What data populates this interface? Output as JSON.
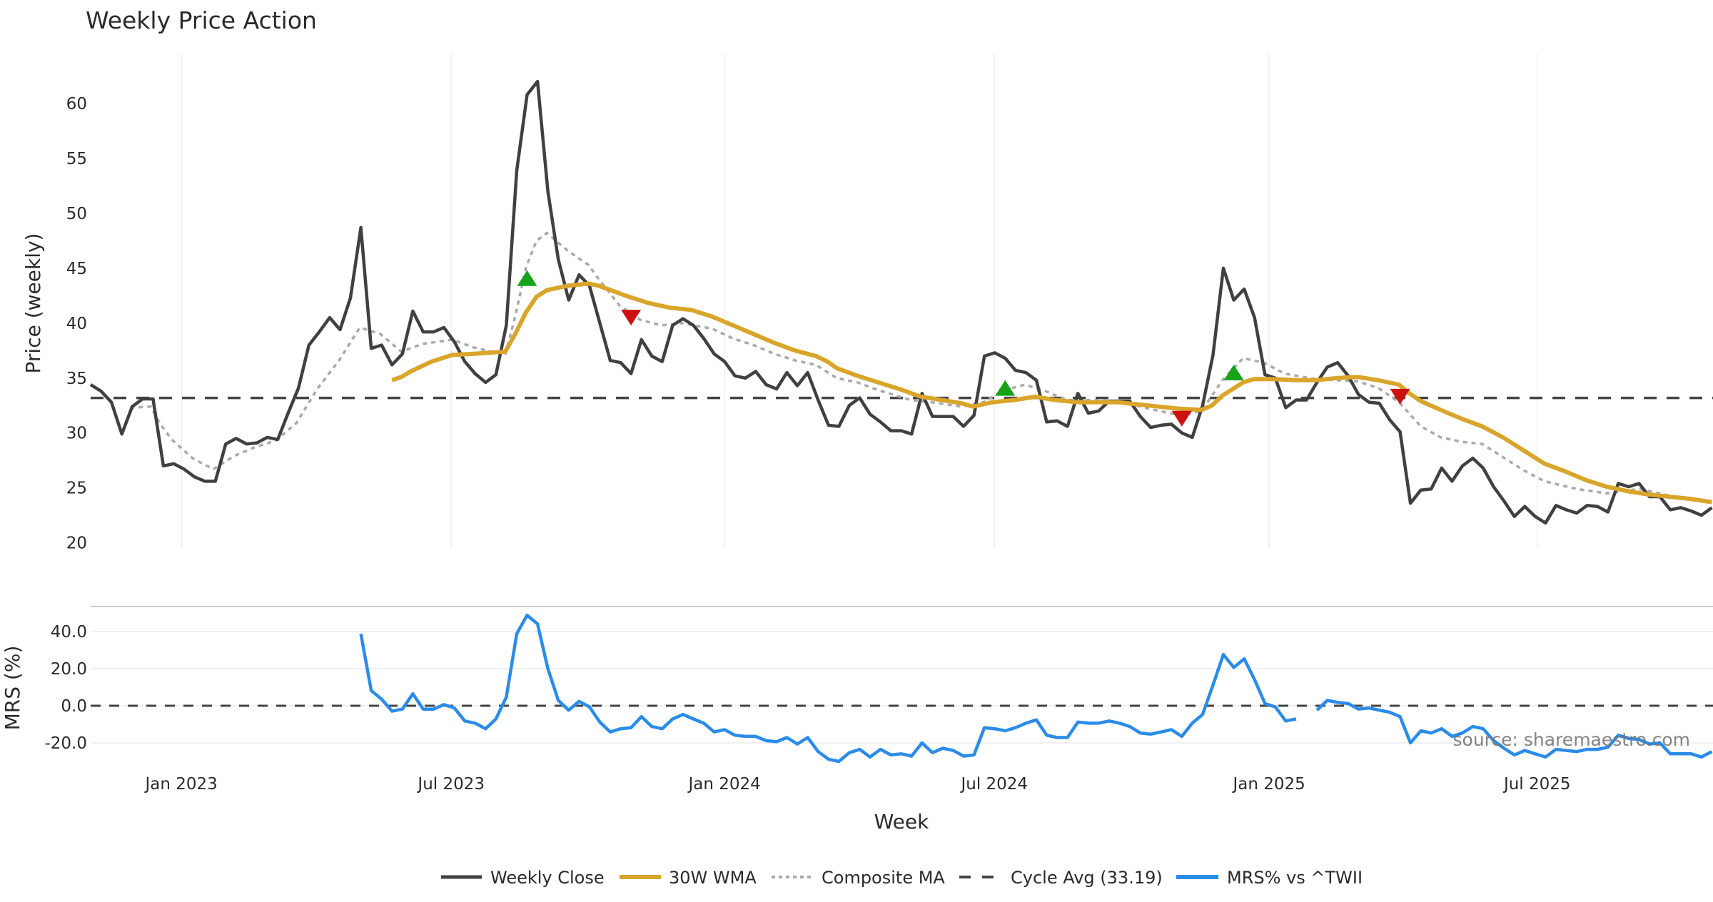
{
  "chart_data": {
    "type": "line",
    "title": "Weekly Price Action",
    "xlabel": "Week",
    "x_unit": "week index (weekly samples)",
    "x_ticks": [
      {
        "label": "Jan 2023",
        "at": 8.73
      },
      {
        "label": "Jul 2023",
        "at": 34.7
      },
      {
        "label": "Jan 2024",
        "at": 61.0
      },
      {
        "label": "Jul 2024",
        "at": 86.97
      },
      {
        "label": "Jan 2025",
        "at": 113.4
      },
      {
        "label": "Jul 2025",
        "at": 139.2
      }
    ],
    "xlim": [
      0,
      156
    ],
    "price_panel": {
      "ylabel": "Price (weekly)",
      "ylim": [
        20,
        60
      ],
      "yticks": [
        "20",
        "25",
        "30",
        "35",
        "40",
        "45",
        "50",
        "55",
        "60"
      ],
      "grid": "vertical",
      "series": {
        "weekly_close": {
          "name": "Weekly Close",
          "color": "#404040",
          "start": 0,
          "values": [
            34.4,
            33.8,
            32.8,
            29.9,
            32.4,
            33.1,
            33.1,
            27.0,
            27.2,
            26.7,
            26.0,
            25.6,
            25.6,
            29.0,
            29.5,
            29.0,
            29.1,
            29.6,
            29.4,
            31.8,
            34.1,
            38.0,
            39.2,
            40.5,
            39.4,
            42.3,
            48.7,
            37.7,
            38.0,
            36.2,
            37.2,
            41.1,
            39.2,
            39.2,
            39.6,
            38.3,
            36.5,
            35.4,
            34.6,
            35.3,
            39.8,
            53.9,
            60.8,
            62.0,
            52.0,
            45.8,
            42.1,
            44.4,
            43.4,
            40.0,
            36.6,
            36.4,
            35.4,
            38.5,
            37.0,
            36.5,
            39.8,
            40.4,
            39.8,
            38.6,
            37.2,
            36.5,
            35.2,
            35.0,
            35.6,
            34.4,
            34.0,
            35.5,
            34.3,
            35.5,
            33.0,
            30.7,
            30.6,
            32.5,
            33.2,
            31.7,
            31.0,
            30.2,
            30.2,
            29.9,
            33.6,
            31.5,
            31.5,
            31.5,
            30.6,
            31.6,
            37.0,
            37.3,
            36.8,
            35.7,
            35.5,
            34.8,
            31.0,
            31.1,
            30.6,
            33.6,
            31.8,
            32.0,
            32.9,
            32.9,
            32.9,
            31.5,
            30.5,
            30.7,
            30.8,
            30.0,
            29.6,
            32.5,
            37.1,
            45.0,
            42.1,
            43.1,
            40.5,
            35.3,
            35.0,
            32.3,
            33.0,
            33.0,
            34.6,
            36.0,
            36.4,
            35.2,
            33.5,
            32.8,
            32.7,
            31.2,
            30.1,
            23.6,
            24.8,
            24.9,
            26.8,
            25.6,
            27.0,
            27.7,
            26.8,
            25.1,
            23.8,
            22.4,
            23.3,
            22.4,
            21.8,
            23.4,
            23.0,
            22.7,
            23.4,
            23.3,
            22.8,
            25.4,
            25.1,
            25.4,
            24.2,
            24.2,
            23.0,
            23.2,
            22.9,
            22.5,
            23.2
          ]
        },
        "wma_30w": {
          "name": "30W WMA",
          "color": "#D9A52A",
          "points": [
            [
              29,
              34.8
            ],
            [
              29.9,
              35.1
            ],
            [
              30.8,
              35.6
            ],
            [
              32.8,
              36.5
            ],
            [
              34.8,
              37.1
            ],
            [
              36.8,
              37.2
            ],
            [
              39.9,
              37.4
            ],
            [
              40.9,
              39.1
            ],
            [
              41.9,
              41.0
            ],
            [
              42.9,
              42.4
            ],
            [
              43.9,
              43.0
            ],
            [
              45.9,
              43.4
            ],
            [
              47.9,
              43.6
            ],
            [
              48.9,
              43.4
            ],
            [
              51.8,
              42.4
            ],
            [
              53.8,
              41.8
            ],
            [
              55.8,
              41.4
            ],
            [
              57.8,
              41.2
            ],
            [
              59.8,
              40.6
            ],
            [
              61.8,
              39.8
            ],
            [
              63.8,
              39.0
            ],
            [
              65.8,
              38.2
            ],
            [
              67.8,
              37.5
            ],
            [
              69.8,
              37.0
            ],
            [
              70.9,
              36.5
            ],
            [
              71.8,
              35.9
            ],
            [
              73.8,
              35.2
            ],
            [
              75.8,
              34.6
            ],
            [
              77.8,
              34.0
            ],
            [
              79.9,
              33.3
            ],
            [
              81.9,
              33.0
            ],
            [
              83.8,
              32.7
            ],
            [
              84.9,
              32.4
            ],
            [
              86.8,
              32.8
            ],
            [
              88.9,
              33.0
            ],
            [
              90.9,
              33.3
            ],
            [
              92.8,
              33.0
            ],
            [
              94.9,
              32.8
            ],
            [
              96.8,
              32.8
            ],
            [
              98.8,
              32.8
            ],
            [
              100.8,
              32.6
            ],
            [
              102.8,
              32.4
            ],
            [
              104.8,
              32.2
            ],
            [
              106.9,
              32.1
            ],
            [
              107.9,
              32.5
            ],
            [
              108.9,
              33.4
            ],
            [
              110.9,
              34.6
            ],
            [
              111.9,
              34.9
            ],
            [
              113.9,
              34.9
            ],
            [
              115.9,
              34.8
            ],
            [
              117.9,
              34.8
            ],
            [
              119.9,
              35.0
            ],
            [
              121.9,
              35.1
            ],
            [
              123.9,
              34.8
            ],
            [
              125.9,
              34.4
            ],
            [
              126.9,
              33.6
            ],
            [
              128.0,
              32.9
            ],
            [
              129.9,
              32.1
            ],
            [
              131.9,
              31.3
            ],
            [
              133.9,
              30.6
            ],
            [
              135.9,
              29.6
            ],
            [
              137.9,
              28.4
            ],
            [
              139.9,
              27.2
            ],
            [
              141.9,
              26.5
            ],
            [
              143.9,
              25.7
            ],
            [
              145.9,
              25.1
            ],
            [
              147.9,
              24.7
            ],
            [
              149.9,
              24.4
            ],
            [
              151.9,
              24.2
            ],
            [
              153.9,
              24.0
            ],
            [
              156,
              23.7
            ]
          ]
        },
        "composite_ma": {
          "name": "Composite MA",
          "color": "#AAAAAA",
          "points": [
            [
              3.8,
              32.3
            ],
            [
              5.8,
              32.4
            ],
            [
              6.7,
              30.8
            ],
            [
              7.8,
              29.4
            ],
            [
              9.8,
              27.7
            ],
            [
              11.8,
              26.7
            ],
            [
              13.8,
              27.9
            ],
            [
              15.8,
              28.7
            ],
            [
              17.8,
              29.3
            ],
            [
              19.8,
              30.9
            ],
            [
              21.8,
              34.0
            ],
            [
              23.9,
              36.6
            ],
            [
              25.9,
              39.6
            ],
            [
              27.9,
              39.0
            ],
            [
              29.9,
              37.4
            ],
            [
              31.9,
              38.1
            ],
            [
              34.8,
              38.5
            ],
            [
              36.8,
              37.8
            ],
            [
              39.9,
              37.1
            ],
            [
              40.9,
              40.8
            ],
            [
              41.9,
              45.1
            ],
            [
              42.9,
              47.5
            ],
            [
              43.9,
              48.2
            ],
            [
              45.9,
              46.6
            ],
            [
              47.9,
              45.3
            ],
            [
              48.9,
              44.0
            ],
            [
              50.9,
              41.6
            ],
            [
              52.9,
              40.3
            ],
            [
              54.9,
              39.8
            ],
            [
              56.9,
              40.0
            ],
            [
              59.8,
              39.5
            ],
            [
              61.8,
              38.6
            ],
            [
              63.8,
              38.0
            ],
            [
              65.8,
              37.2
            ],
            [
              67.8,
              36.6
            ],
            [
              69.8,
              36.2
            ],
            [
              71.8,
              35.0
            ],
            [
              73.8,
              34.6
            ],
            [
              75.8,
              33.9
            ],
            [
              78.9,
              33.0
            ],
            [
              80.9,
              32.8
            ],
            [
              83.8,
              32.4
            ],
            [
              85.9,
              32.8
            ],
            [
              87.9,
              33.9
            ],
            [
              89.9,
              34.4
            ],
            [
              91.9,
              33.8
            ],
            [
              93.9,
              33.0
            ],
            [
              95.9,
              33.0
            ],
            [
              98.8,
              32.9
            ],
            [
              101.9,
              32.2
            ],
            [
              104.8,
              31.6
            ],
            [
              106.9,
              32.0
            ],
            [
              108.9,
              34.8
            ],
            [
              110.9,
              36.8
            ],
            [
              112.9,
              36.4
            ],
            [
              114.9,
              35.4
            ],
            [
              117.9,
              34.9
            ],
            [
              119.9,
              34.8
            ],
            [
              121.9,
              34.7
            ],
            [
              123.9,
              34.1
            ],
            [
              125.9,
              32.8
            ],
            [
              128.0,
              30.6
            ],
            [
              129.9,
              29.6
            ],
            [
              131.9,
              29.2
            ],
            [
              133.9,
              29.0
            ],
            [
              135.9,
              27.8
            ],
            [
              137.9,
              26.6
            ],
            [
              139.9,
              25.6
            ],
            [
              143.0,
              24.9
            ],
            [
              145.9,
              24.5
            ],
            [
              149.0,
              24.9
            ],
            [
              151.9,
              24.3
            ],
            [
              156,
              23.7
            ]
          ]
        },
        "cycle_avg": {
          "name": "Cycle Avg (33.19)",
          "color": "#444444",
          "value": 33.19
        }
      },
      "signals": {
        "buy": {
          "color": "#17A319",
          "points": [
            [
              42,
              44.1
            ],
            [
              88,
              34.1
            ],
            [
              110,
              35.5
            ]
          ]
        },
        "sell": {
          "color": "#CC1111",
          "points": [
            [
              52,
              40.5
            ],
            [
              105,
              31.3
            ],
            [
              126,
              33.3
            ]
          ]
        }
      }
    },
    "mrs_panel": {
      "ylabel": "MRS (%)",
      "ylim": [
        -33,
        55
      ],
      "yticks": [
        {
          "label": "40.0",
          "v": 40
        },
        {
          "label": "20.0",
          "v": 20
        },
        {
          "label": "0.0",
          "v": 0
        },
        {
          "label": "-20.0",
          "v": -20
        }
      ],
      "grid": "horizontal",
      "zero_line": 0,
      "series": {
        "name": "MRS% vs ^TWII",
        "color": "#2B8CE8",
        "start": 26,
        "values": [
          38.8,
          8.2,
          3.5,
          -2.9,
          -1.8,
          6.5,
          -1.8,
          -1.8,
          0.6,
          -1.2,
          -8.2,
          -9.4,
          -12.4,
          -7.1,
          4.7,
          38.8,
          48.8,
          44.1,
          20.0,
          2.9,
          -2.4,
          2.4,
          -0.6,
          -8.8,
          -14.1,
          -12.4,
          -11.8,
          -5.9,
          -11.2,
          -12.4,
          -7.1,
          -4.7,
          -7.1,
          -9.4,
          -14.1,
          -12.9,
          -15.9,
          -16.5,
          -16.5,
          -18.8,
          -19.4,
          -17.1,
          -20.6,
          -17.1,
          -24.7,
          -28.8,
          -30.0,
          -25.3,
          -23.5,
          -27.6,
          -23.5,
          -26.5,
          -25.9,
          -27.1,
          -20.0,
          -25.3,
          -22.9,
          -24.1,
          -27.1,
          -26.5,
          -11.8,
          -12.4,
          -13.5,
          -11.8,
          -9.4,
          -7.6,
          -15.9,
          -17.1,
          -17.1,
          -8.8,
          -9.4,
          -9.4,
          -8.2,
          -9.4,
          -11.2,
          -14.7,
          -15.3,
          -14.1,
          -12.9,
          -16.5,
          -9.4,
          -4.7,
          11.2,
          27.6,
          20.6,
          25.3,
          14.1,
          1.2,
          -0.6,
          -8.2,
          -7.1,
          null,
          -2.4,
          2.9,
          1.8,
          1.2,
          -1.8,
          -1.2,
          -2.4,
          -3.5,
          -5.9,
          -20.0,
          -13.5,
          -14.7,
          -12.4,
          -16.5,
          -14.7,
          -11.2,
          -12.4,
          -18.8,
          -22.9,
          -26.5,
          -24.1,
          -25.9,
          -27.6,
          -23.5,
          -24.1,
          -24.7,
          -23.5,
          -23.5,
          -22.4,
          -15.9,
          -17.6,
          -18.2,
          -20.6,
          -20.0,
          -25.9,
          -25.9,
          -25.9,
          -27.6,
          -24.7
        ]
      }
    },
    "legend": {
      "placement": "bottom-center",
      "items": [
        "Weekly Close",
        "30W WMA",
        "Composite MA",
        "Cycle Avg (33.19)",
        "MRS% vs ^TWII"
      ]
    },
    "watermark": "source: sharemaestro.com"
  }
}
